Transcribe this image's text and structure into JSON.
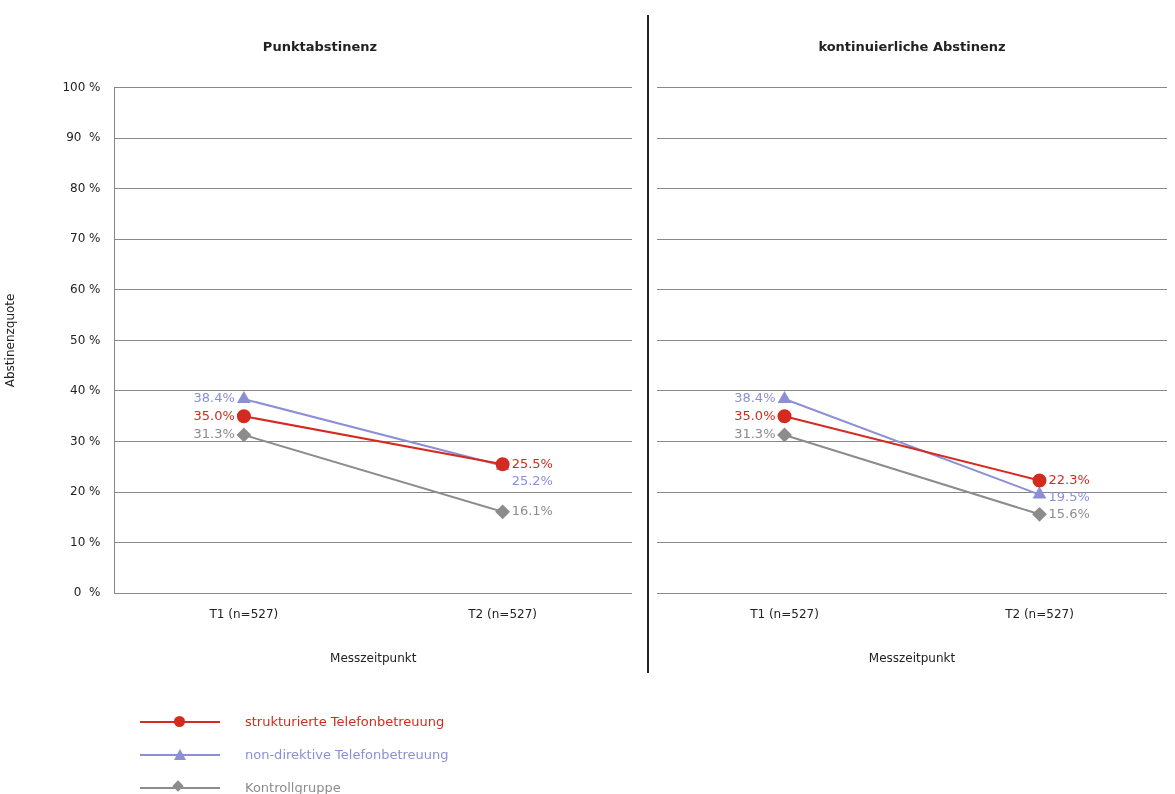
{
  "chart_data": [
    {
      "type": "line",
      "title": "Punktabstinenz",
      "xlabel": "Messzeitpunkt",
      "ylabel": "Abstinenzquote",
      "categories": [
        "T1 (n=527)",
        "T2 (n=527)"
      ],
      "ylim": [
        0,
        100
      ],
      "yticks": [
        {
          "value": 0,
          "label": "0  %"
        },
        {
          "value": 10,
          "label": "10 %"
        },
        {
          "value": 20,
          "label": "20 %"
        },
        {
          "value": 30,
          "label": "30 %"
        },
        {
          "value": 40,
          "label": "40 %"
        },
        {
          "value": 50,
          "label": "50 %"
        },
        {
          "value": 60,
          "label": "60 %"
        },
        {
          "value": 70,
          "label": "70 %"
        },
        {
          "value": 80,
          "label": "80 %"
        },
        {
          "value": 90,
          "label": "90  %"
        },
        {
          "value": 100,
          "label": "100 %"
        }
      ],
      "grid": "y",
      "legend": "bottom left",
      "series": [
        {
          "name": "strukturierte Telefonbetreuung",
          "color": "#d42a20",
          "marker": "circle",
          "values": [
            35.0,
            25.5
          ],
          "value_labels": [
            "35.0%",
            "25.5%"
          ]
        },
        {
          "name": "non-direktive Telefonbetreuung",
          "color": "#8c8fd4",
          "marker": "triangle",
          "values": [
            38.4,
            25.2
          ],
          "value_labels": [
            "38.4%",
            "25.2%"
          ]
        },
        {
          "name": "Kontrollgruppe",
          "color": "#8c8c8c",
          "marker": "diamond",
          "values": [
            31.3,
            16.1
          ],
          "value_labels": [
            "31.3%",
            "16.1%"
          ]
        }
      ]
    },
    {
      "type": "line",
      "title": "kontinuierliche Abstinenz",
      "xlabel": "Messzeitpunkt",
      "categories": [
        "T1 (n=527)",
        "T2 (n=527)"
      ],
      "ylim": [
        0,
        100
      ],
      "yticks": [
        0,
        10,
        20,
        30,
        40,
        50,
        60,
        70,
        80,
        90,
        100
      ],
      "grid": "y",
      "tick_labels": "x",
      "series": [
        {
          "color": "#d42a20",
          "marker": "circle",
          "values": [
            35.0,
            22.3
          ],
          "value_labels": [
            "35.0%",
            "22.3%"
          ]
        },
        {
          "color": "#8c8fd4",
          "marker": "triangle",
          "values": [
            38.4,
            19.5
          ],
          "value_labels": [
            "38.4%",
            "19.5%"
          ]
        },
        {
          "color": "#8c8c8c",
          "marker": "diamond",
          "values": [
            31.3,
            15.6
          ],
          "value_labels": [
            "31.3%",
            "15.6%"
          ]
        }
      ]
    }
  ]
}
